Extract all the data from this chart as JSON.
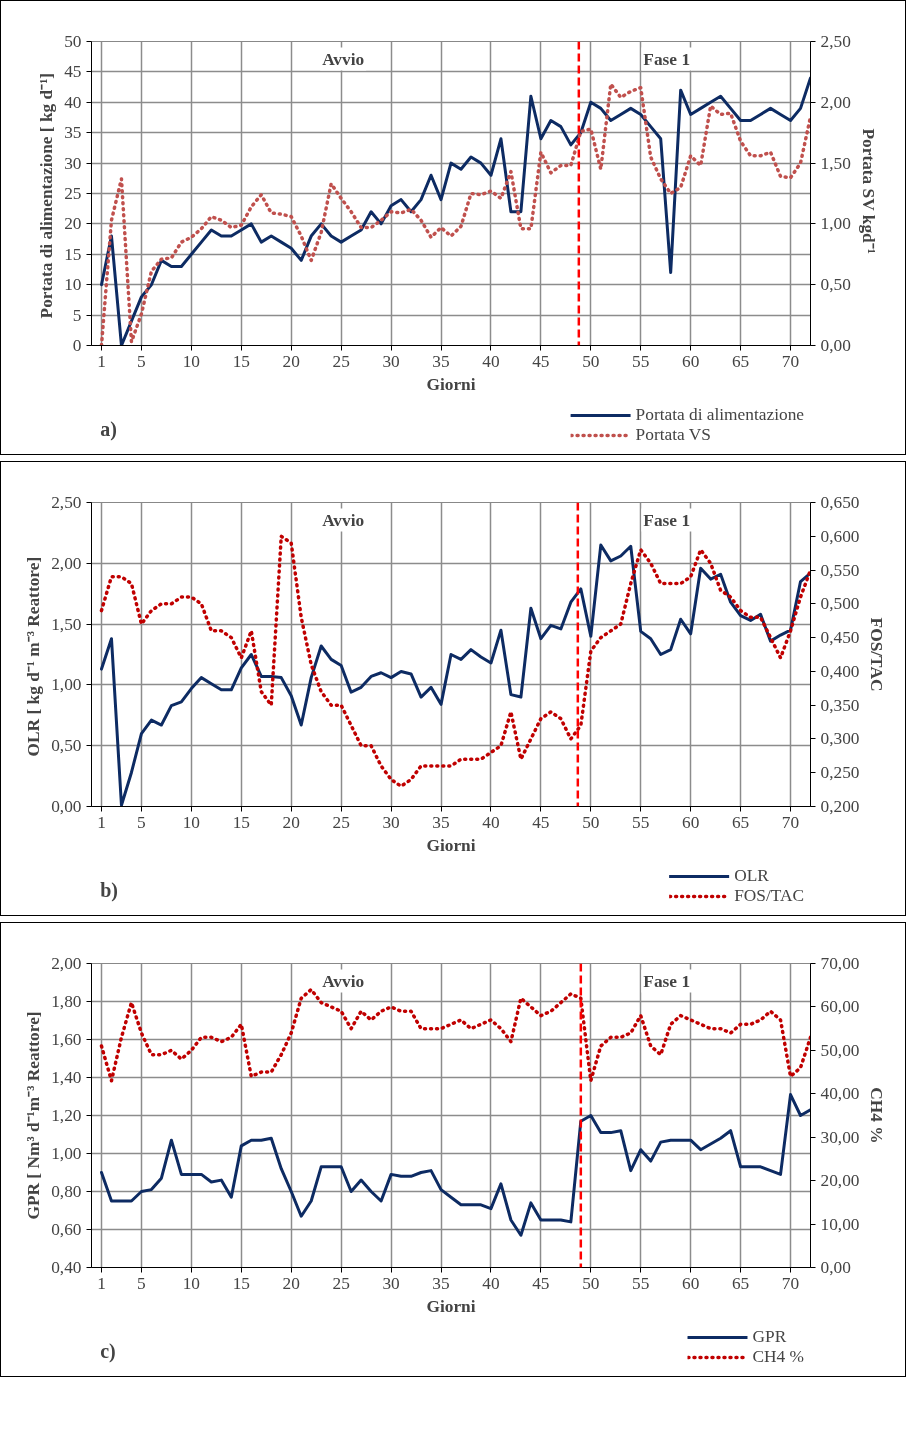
{
  "chart_data": [
    {
      "type": "line",
      "xlabel": "Giorni",
      "ylabel": "Portata di alimentazione  [ kg d⁻¹]",
      "y2label": "Portata  SV kgd⁻¹",
      "annotations": [
        "Avvio",
        "Fase 1",
        "a)"
      ],
      "x": [
        1,
        2,
        3,
        4,
        5,
        6,
        7,
        8,
        9,
        10,
        11,
        12,
        13,
        14,
        15,
        16,
        17,
        18,
        19,
        20,
        21,
        22,
        23,
        24,
        25,
        26,
        27,
        28,
        29,
        30,
        31,
        32,
        33,
        34,
        35,
        36,
        37,
        38,
        39,
        40,
        41,
        42,
        43,
        44,
        45,
        46,
        47,
        48,
        49,
        50,
        51,
        52,
        53,
        54,
        55,
        56,
        57,
        58,
        59,
        60,
        61,
        62,
        63,
        64,
        65,
        66,
        67,
        68,
        69,
        70,
        71,
        72
      ],
      "xlim": [
        0,
        72
      ],
      "xticks": [
        1,
        5,
        10,
        15,
        20,
        25,
        30,
        35,
        40,
        45,
        50,
        55,
        60,
        65,
        70
      ],
      "ylim": [
        0,
        50
      ],
      "yticks": [
        0,
        5,
        10,
        15,
        20,
        25,
        30,
        35,
        40,
        45,
        50
      ],
      "y2lim": [
        0,
        2.5
      ],
      "y2ticks": [
        {
          "value": 0,
          "label": "0,00"
        },
        {
          "value": 0.5,
          "label": "0,50"
        },
        {
          "value": 1,
          "label": "1,00"
        },
        {
          "value": 1.5,
          "label": "1,50"
        },
        {
          "value": 2,
          "label": "2,00"
        },
        {
          "value": 2.5,
          "label": "2,50"
        }
      ],
      "grid": true,
      "legend": "bottom right",
      "ref_lines": [
        {
          "axis": "x",
          "value": 48.8,
          "color": "#ff0000",
          "line_style": "dashed"
        }
      ],
      "series": [
        {
          "name": "Portata di alimentazione",
          "color": "#0d2b63",
          "line_style": "solid",
          "values": [
            10,
            18,
            0,
            4,
            8,
            10,
            14,
            13,
            13,
            15,
            17,
            19,
            18,
            18,
            19,
            20,
            17,
            18,
            17,
            16,
            14,
            18,
            20,
            18,
            17,
            18,
            19,
            22,
            20,
            23,
            24,
            22,
            24,
            28,
            24,
            30,
            29,
            31,
            30,
            28,
            34,
            22,
            22,
            41,
            34,
            37,
            36,
            33,
            35,
            40,
            39,
            37,
            38,
            39,
            38,
            36,
            34,
            12,
            42,
            38,
            39,
            40,
            41,
            39,
            37,
            37,
            38,
            39,
            38,
            37,
            39,
            44
          ]
        },
        {
          "name": "Portata VS",
          "color": "#c0504d",
          "line_style": "dotted",
          "axis": "y2",
          "values": [
            0,
            1.03,
            1.37,
            0.03,
            0.26,
            0.61,
            0.71,
            0.72,
            0.85,
            0.89,
            0.96,
            1.06,
            1.03,
            0.97,
            0.99,
            1.14,
            1.24,
            1.09,
            1.08,
            1.06,
            0.9,
            0.7,
            0.93,
            1.33,
            1.21,
            1.1,
            0.97,
            0.97,
            1.03,
            1.1,
            1.09,
            1.12,
            1.03,
            0.89,
            0.97,
            0.9,
            0.98,
            1.25,
            1.24,
            1.27,
            1.21,
            1.43,
            0.96,
            0.96,
            1.59,
            1.42,
            1.48,
            1.48,
            1.76,
            1.78,
            1.45,
            2.15,
            2.04,
            2.09,
            2.12,
            1.55,
            1.37,
            1.25,
            1.3,
            1.56,
            1.48,
            1.97,
            1.9,
            1.91,
            1.68,
            1.56,
            1.56,
            1.59,
            1.39,
            1.38,
            1.5,
            1.88
          ]
        }
      ]
    },
    {
      "type": "line",
      "xlabel": "Giorni",
      "ylabel": "OLR  [ kg d⁻¹ m⁻³ Reattore]",
      "y2label": "FOS/TAC",
      "annotations": [
        "Avvio",
        "Fase 1",
        "b)"
      ],
      "x": [
        1,
        2,
        3,
        4,
        5,
        6,
        7,
        8,
        9,
        10,
        11,
        12,
        13,
        14,
        15,
        16,
        17,
        18,
        19,
        20,
        21,
        22,
        23,
        24,
        25,
        26,
        27,
        28,
        29,
        30,
        31,
        32,
        33,
        34,
        35,
        36,
        37,
        38,
        39,
        40,
        41,
        42,
        43,
        44,
        45,
        46,
        47,
        48,
        49,
        50,
        51,
        52,
        53,
        54,
        55,
        56,
        57,
        58,
        59,
        60,
        61,
        62,
        63,
        64,
        65,
        66,
        67,
        68,
        69,
        70,
        71,
        72
      ],
      "xlim": [
        0,
        72
      ],
      "xticks": [
        1,
        5,
        10,
        15,
        20,
        25,
        30,
        35,
        40,
        45,
        50,
        55,
        60,
        65,
        70
      ],
      "ylim": [
        0,
        2.5
      ],
      "yticks": [
        {
          "value": 0,
          "label": "0,00"
        },
        {
          "value": 0.5,
          "label": "0,50"
        },
        {
          "value": 1,
          "label": "1,00"
        },
        {
          "value": 1.5,
          "label": "1,50"
        },
        {
          "value": 2,
          "label": "2,00"
        },
        {
          "value": 2.5,
          "label": "2,50"
        }
      ],
      "y2lim": [
        0.2,
        0.65
      ],
      "y2ticks": [
        {
          "value": 0.2,
          "label": "0,200"
        },
        {
          "value": 0.25,
          "label": "0,250"
        },
        {
          "value": 0.3,
          "label": "0,300"
        },
        {
          "value": 0.35,
          "label": "0,350"
        },
        {
          "value": 0.4,
          "label": "0,400"
        },
        {
          "value": 0.45,
          "label": "0,450"
        },
        {
          "value": 0.5,
          "label": "0,500"
        },
        {
          "value": 0.55,
          "label": "0,550"
        },
        {
          "value": 0.6,
          "label": "0,600"
        },
        {
          "value": 0.65,
          "label": "0,650"
        }
      ],
      "grid": true,
      "legend": "bottom right",
      "ref_lines": [
        {
          "axis": "x",
          "value": 48.7,
          "color": "#ff0000",
          "line_style": "dashed"
        }
      ],
      "series": [
        {
          "name": "OLR",
          "color": "#0d2b63",
          "line_style": "solid",
          "values": [
            1.13,
            1.38,
            0.01,
            0.28,
            0.6,
            0.71,
            0.67,
            0.83,
            0.86,
            0.97,
            1.06,
            1.01,
            0.96,
            0.96,
            1.14,
            1.25,
            1.07,
            1.07,
            1.06,
            0.91,
            0.67,
            1.06,
            1.32,
            1.21,
            1.16,
            0.94,
            0.98,
            1.07,
            1.1,
            1.06,
            1.11,
            1.09,
            0.9,
            0.98,
            0.84,
            1.25,
            1.21,
            1.29,
            1.23,
            1.18,
            1.45,
            0.92,
            0.9,
            1.63,
            1.38,
            1.49,
            1.46,
            1.68,
            1.79,
            1.4,
            2.15,
            2.02,
            2.06,
            2.14,
            1.44,
            1.38,
            1.25,
            1.29,
            1.54,
            1.42,
            1.96,
            1.87,
            1.91,
            1.68,
            1.57,
            1.53,
            1.58,
            1.36,
            1.41,
            1.45,
            1.85,
            1.92
          ]
        },
        {
          "name": "FOS/TAC",
          "color": "#c00000",
          "line_style": "dotted",
          "axis": "y2",
          "values": [
            0.49,
            0.54,
            0.54,
            0.53,
            0.47,
            0.49,
            0.5,
            0.5,
            0.51,
            0.51,
            0.5,
            0.46,
            0.46,
            0.45,
            0.42,
            0.46,
            0.37,
            0.35,
            0.6,
            0.59,
            0.48,
            0.41,
            0.37,
            0.35,
            0.35,
            0.32,
            0.29,
            0.29,
            0.26,
            0.24,
            0.23,
            0.24,
            0.26,
            0.26,
            0.26,
            0.26,
            0.27,
            0.27,
            0.27,
            0.28,
            0.29,
            0.34,
            0.27,
            0.3,
            0.33,
            0.34,
            0.33,
            0.3,
            0.32,
            0.43,
            0.45,
            0.46,
            0.47,
            0.53,
            0.58,
            0.56,
            0.53,
            0.53,
            0.53,
            0.54,
            0.58,
            0.56,
            0.52,
            0.51,
            0.49,
            0.48,
            0.48,
            0.45,
            0.42,
            0.46,
            0.51,
            0.55
          ]
        }
      ]
    },
    {
      "type": "line",
      "xlabel": "Giorni",
      "ylabel": "GPR [ Nm³ d⁻¹m⁻³ Reattore]",
      "y2label": "CH4 %",
      "annotations": [
        "Avvio",
        "Fase 1",
        "c)"
      ],
      "x": [
        1,
        2,
        3,
        4,
        5,
        6,
        7,
        8,
        9,
        10,
        11,
        12,
        13,
        14,
        15,
        16,
        17,
        18,
        19,
        20,
        21,
        22,
        23,
        24,
        25,
        26,
        27,
        28,
        29,
        30,
        31,
        32,
        33,
        34,
        35,
        36,
        37,
        38,
        39,
        40,
        41,
        42,
        43,
        44,
        45,
        46,
        47,
        48,
        49,
        50,
        51,
        52,
        53,
        54,
        55,
        56,
        57,
        58,
        59,
        60,
        61,
        62,
        63,
        64,
        65,
        66,
        67,
        68,
        69,
        70,
        71,
        72
      ],
      "xlim": [
        0,
        72
      ],
      "xticks": [
        1,
        5,
        10,
        15,
        20,
        25,
        30,
        35,
        40,
        45,
        50,
        55,
        60,
        65,
        70
      ],
      "ylim": [
        0.4,
        2.0
      ],
      "yticks": [
        {
          "value": 0.4,
          "label": "0,40"
        },
        {
          "value": 0.6,
          "label": "0,60"
        },
        {
          "value": 0.8,
          "label": "0,80"
        },
        {
          "value": 1.0,
          "label": "1,00"
        },
        {
          "value": 1.2,
          "label": "1,20"
        },
        {
          "value": 1.4,
          "label": "1,40"
        },
        {
          "value": 1.6,
          "label": "1,60"
        },
        {
          "value": 1.8,
          "label": "1,80"
        },
        {
          "value": 2.0,
          "label": "2,00"
        }
      ],
      "y2lim": [
        0,
        70
      ],
      "y2ticks": [
        {
          "value": 0,
          "label": "0,00"
        },
        {
          "value": 10,
          "label": "10,00"
        },
        {
          "value": 20,
          "label": "20,00"
        },
        {
          "value": 30,
          "label": "30,00"
        },
        {
          "value": 40,
          "label": "40,00"
        },
        {
          "value": 50,
          "label": "50,00"
        },
        {
          "value": 60,
          "label": "60,00"
        },
        {
          "value": 70,
          "label": "70,00"
        }
      ],
      "grid": true,
      "legend": "bottom right",
      "ref_lines": [
        {
          "axis": "x",
          "value": 49,
          "color": "#ff0000",
          "line_style": "dashed"
        }
      ],
      "series": [
        {
          "name": "GPR",
          "color": "#0d2b63",
          "line_style": "solid",
          "values": [
            0.9,
            0.75,
            0.75,
            0.75,
            0.8,
            0.81,
            0.87,
            1.07,
            0.89,
            0.89,
            0.89,
            0.85,
            0.86,
            0.77,
            1.04,
            1.07,
            1.07,
            1.08,
            0.92,
            0.8,
            0.67,
            0.75,
            0.93,
            0.93,
            0.93,
            0.8,
            0.86,
            0.8,
            0.75,
            0.89,
            0.88,
            0.88,
            0.9,
            0.91,
            0.81,
            0.77,
            0.73,
            0.73,
            0.73,
            0.71,
            0.84,
            0.65,
            0.57,
            0.74,
            0.65,
            0.65,
            0.65,
            0.64,
            1.17,
            1.2,
            1.11,
            1.11,
            1.12,
            0.91,
            1.02,
            0.96,
            1.06,
            1.07,
            1.07,
            1.07,
            1.02,
            1.05,
            1.08,
            1.12,
            0.93,
            0.93,
            0.93,
            0.91,
            0.89,
            1.31,
            1.2,
            1.23
          ]
        },
        {
          "name": "CH4 %",
          "color": "#c00000",
          "line_style": "dotted",
          "axis": "y2",
          "values": [
            51,
            43,
            53,
            61,
            54,
            49,
            49,
            50,
            48,
            50,
            53,
            53,
            52,
            53,
            56,
            44,
            45,
            45,
            49,
            54,
            62,
            64,
            61,
            60,
            59,
            55,
            59,
            57,
            59,
            60,
            59,
            59,
            55,
            55,
            55,
            56,
            57,
            55,
            56,
            57,
            55,
            52,
            62,
            60,
            58,
            59,
            61,
            63,
            62,
            43,
            51,
            53,
            53,
            54,
            58,
            51,
            49,
            56,
            58,
            57,
            56,
            55,
            55,
            54,
            56,
            56,
            57,
            59,
            57,
            44,
            46,
            53
          ]
        }
      ]
    }
  ]
}
